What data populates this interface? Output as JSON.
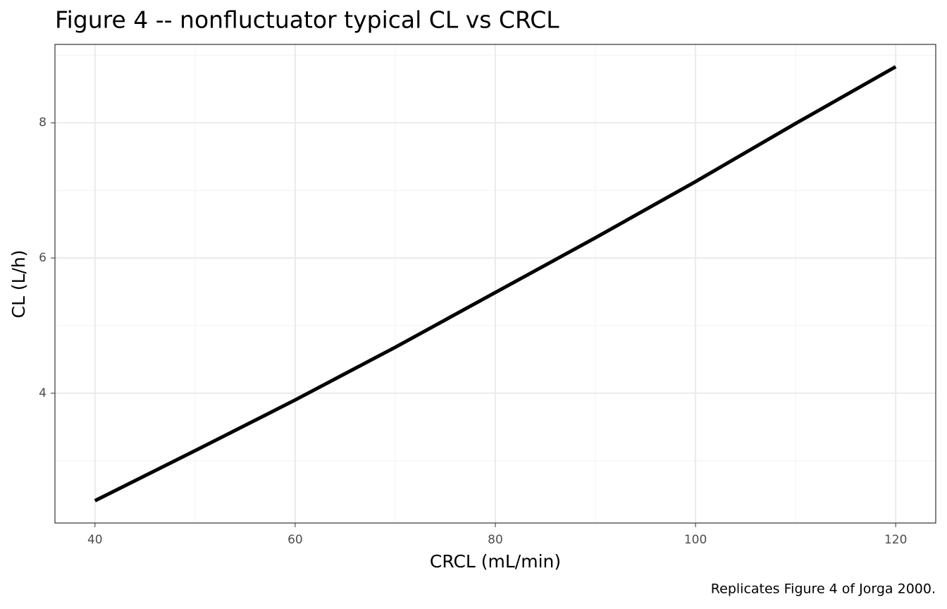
{
  "chart_data": {
    "type": "line",
    "title": "Figure 4 -- nonfluctuator typical CL vs CRCL",
    "x_label": "CRCL (mL/min)",
    "y_label": "CL (L/h)",
    "caption": "Replicates Figure 4 of Jorga 2000.",
    "x": [
      40,
      50,
      60,
      70,
      80,
      90,
      100,
      110,
      120
    ],
    "series": [
      {
        "name": "CL",
        "color": "#000000",
        "values": [
          2.41,
          3.15,
          3.9,
          4.68,
          5.49,
          6.3,
          7.13,
          7.99,
          8.83
        ]
      }
    ],
    "xlim": [
      36,
      124
    ],
    "ylim": [
      2.08,
      9.16
    ],
    "xticks": [
      40,
      60,
      80,
      100,
      120
    ],
    "yticks": [
      4,
      6,
      8
    ],
    "xminor": [
      50,
      70,
      90,
      110
    ],
    "yminor": [
      3,
      5,
      7,
      9
    ],
    "grid": true
  }
}
